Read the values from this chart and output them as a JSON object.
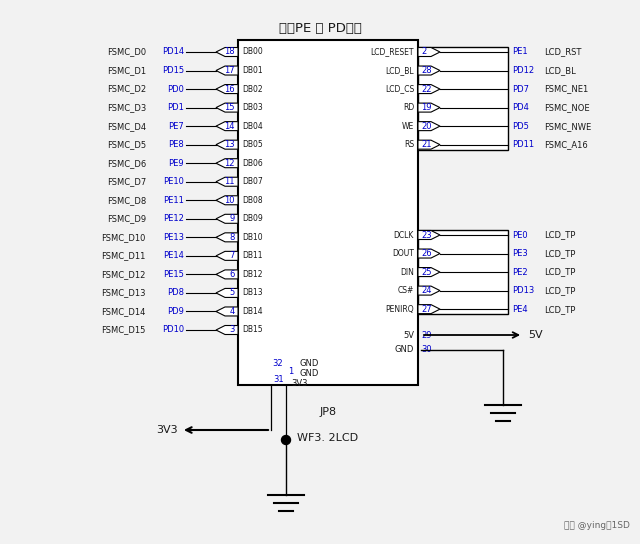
{
  "title": "用了PE 和 PD端口",
  "subtitle_chip": "JP8",
  "subtitle_board": "WF3. 2LCD",
  "watermark": "头条 @ying说1SD",
  "bg_color": "#f2f2f2",
  "text_color_black": "#1a1a1a",
  "text_color_blue": "#0000cc",
  "left_pins": [
    {
      "pin": 18,
      "db": "DB00",
      "port": "PD14",
      "fsmc": "FSMC_D0"
    },
    {
      "pin": 17,
      "db": "DB01",
      "port": "PD15",
      "fsmc": "FSMC_D1"
    },
    {
      "pin": 16,
      "db": "DB02",
      "port": "PD0",
      "fsmc": "FSMC_D2"
    },
    {
      "pin": 15,
      "db": "DB03",
      "port": "PD1",
      "fsmc": "FSMC_D3"
    },
    {
      "pin": 14,
      "db": "DB04",
      "port": "PE7",
      "fsmc": "FSMC_D4"
    },
    {
      "pin": 13,
      "db": "DB05",
      "port": "PE8",
      "fsmc": "FSMC_D5"
    },
    {
      "pin": 12,
      "db": "DB06",
      "port": "PE9",
      "fsmc": "FSMC_D6"
    },
    {
      "pin": 11,
      "db": "DB07",
      "port": "PE10",
      "fsmc": "FSMC_D7"
    },
    {
      "pin": 10,
      "db": "DB08",
      "port": "PE11",
      "fsmc": "FSMC_D8"
    },
    {
      "pin": 9,
      "db": "DB09",
      "port": "PE12",
      "fsmc": "FSMC_D9"
    },
    {
      "pin": 8,
      "db": "DB10",
      "port": "PE13",
      "fsmc": "FSMC_D10"
    },
    {
      "pin": 7,
      "db": "DB11",
      "port": "PE14",
      "fsmc": "FSMC_D11"
    },
    {
      "pin": 6,
      "db": "DB12",
      "port": "PE15",
      "fsmc": "FSMC_D12"
    },
    {
      "pin": 5,
      "db": "DB13",
      "port": "PD8",
      "fsmc": "FSMC_D13"
    },
    {
      "pin": 4,
      "db": "DB14",
      "port": "PD9",
      "fsmc": "FSMC_D14"
    },
    {
      "pin": 3,
      "db": "DB15",
      "port": "PD10",
      "fsmc": "FSMC_D15"
    }
  ],
  "right_top_pins": [
    {
      "pin": 2,
      "sig": "LCD_RESET",
      "port": "PE1",
      "func": "LCD_RST"
    },
    {
      "pin": 28,
      "sig": "LCD_BL",
      "port": "PD12",
      "func": "LCD_BL"
    },
    {
      "pin": 22,
      "sig": "LCD_CS",
      "port": "PD7",
      "func": "FSMC_NE1"
    },
    {
      "pin": 19,
      "sig": "RD",
      "port": "PD4",
      "func": "FSMC_NOE"
    },
    {
      "pin": 20,
      "sig": "WE",
      "port": "PD5",
      "func": "FSMC_NWE"
    },
    {
      "pin": 21,
      "sig": "RS",
      "port": "PD11",
      "func": "FSMC_A16"
    }
  ],
  "right_bot_pins": [
    {
      "pin": 23,
      "sig": "DCLK",
      "port": "PE0",
      "func": "LCD_TP"
    },
    {
      "pin": 26,
      "sig": "DOUT",
      "port": "PE3",
      "func": "LCD_TP"
    },
    {
      "pin": 25,
      "sig": "DIN",
      "port": "PE2",
      "func": "LCD_TP"
    },
    {
      "pin": 24,
      "sig": "CS#",
      "port": "PD13",
      "func": "LCD_TP"
    },
    {
      "pin": 27,
      "sig": "PENIRQ",
      "port": "PE4",
      "func": "LCD_TP"
    }
  ]
}
